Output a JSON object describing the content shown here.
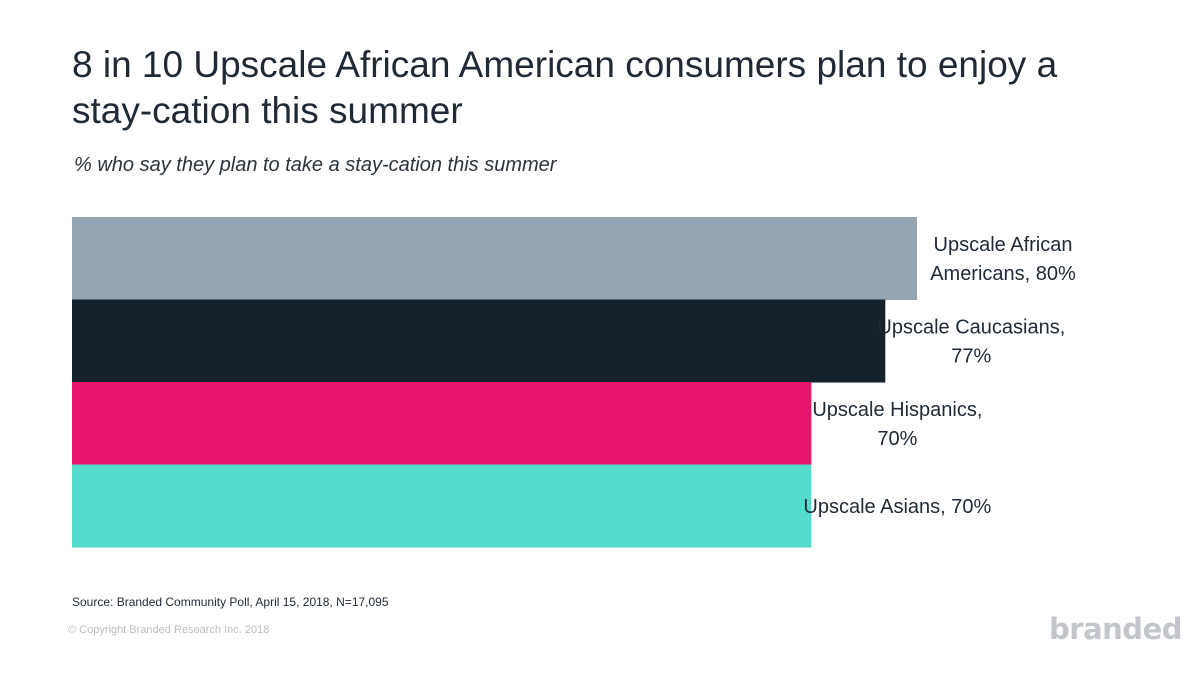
{
  "title": "8 in 10 Upscale African American consumers plan to enjoy a stay-cation this summer",
  "subtitle": "% who say they plan to take a stay-cation this summer",
  "source": "Source: Branded Community Poll, April 15, 2018, N=17,095",
  "copyright": "© Copyright Branded Research Inc. 2018",
  "brand": "branded",
  "chart_data": {
    "type": "bar",
    "orientation": "horizontal",
    "title": "8 in 10 Upscale African American consumers plan to enjoy a stay-cation this summer",
    "subtitle": "% who say they plan to take a stay-cation this summer",
    "xlabel": "",
    "ylabel": "",
    "xlim": [
      0,
      80
    ],
    "grid": false,
    "legend": "none",
    "categories": [
      "Upscale African Americans",
      "Upscale Caucasians",
      "Upscale Hispanics",
      "Upscale Asians"
    ],
    "values": [
      80,
      77,
      70,
      70
    ],
    "labels": [
      [
        "Upscale African",
        "Americans, 80%"
      ],
      [
        "Upscale Caucasians,",
        "77%"
      ],
      [
        "Upscale Hispanics,",
        "70%"
      ],
      [
        "Upscale Asians, 70%"
      ]
    ],
    "colors": [
      "#95a5b2",
      "#15212b",
      "#e8136a",
      "#53dccb"
    ]
  }
}
